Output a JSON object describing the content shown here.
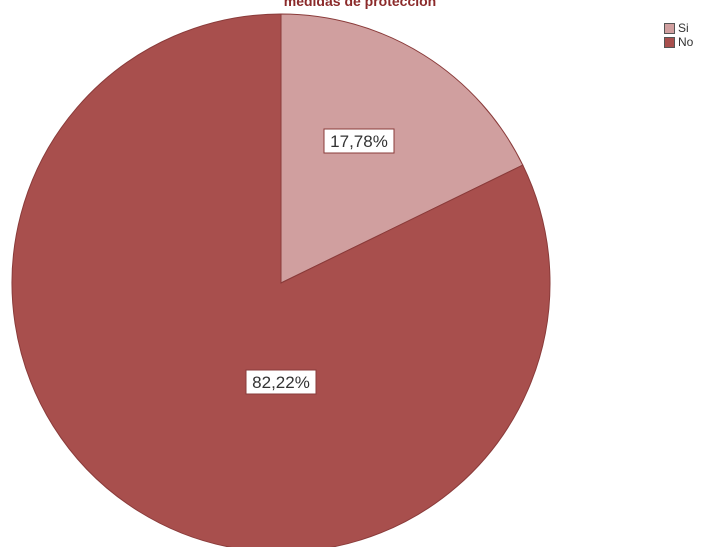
{
  "chart_data": {
    "type": "pie",
    "title": "medidas de protección",
    "categories": [
      "Si",
      "No"
    ],
    "values": [
      17.78,
      82.22
    ],
    "data_labels": [
      "17,78%",
      "82,22%"
    ],
    "colors": [
      "#d09f9f",
      "#a84f4d"
    ],
    "start": "12 o'clock",
    "direction": "clockwise",
    "legend": {
      "placement": "top-right",
      "entries": [
        "Si",
        "No"
      ]
    }
  }
}
